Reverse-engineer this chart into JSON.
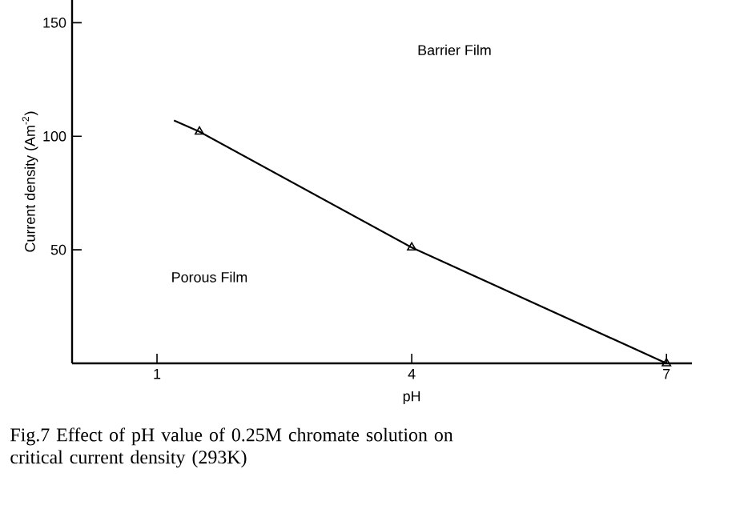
{
  "chart_data": {
    "type": "line",
    "title": "Fig.7  Effect of pH value of 0.25M chromate solution on critical current density (293K)",
    "xlabel": "pH",
    "ylabel": "Current density (Am$^{-2}$)",
    "series": [
      {
        "color": "#000000",
        "x": [
          1.2,
          1.5,
          4,
          7
        ],
        "values": [
          107,
          102,
          51,
          0
        ],
        "marker": "none"
      },
      {
        "type": "scatter",
        "color": "#000000",
        "x": [
          1.5,
          4,
          7
        ],
        "values": [
          102,
          51,
          0
        ],
        "marker": "triangle"
      }
    ],
    "xlim": [
      0,
      7.3
    ],
    "ylim": [
      0,
      160
    ],
    "xticks": [
      1,
      4,
      7
    ],
    "yticks": [
      50,
      100,
      150
    ],
    "annotations": [
      "Barrier Film",
      "Porous Film"
    ],
    "grid": false
  }
}
